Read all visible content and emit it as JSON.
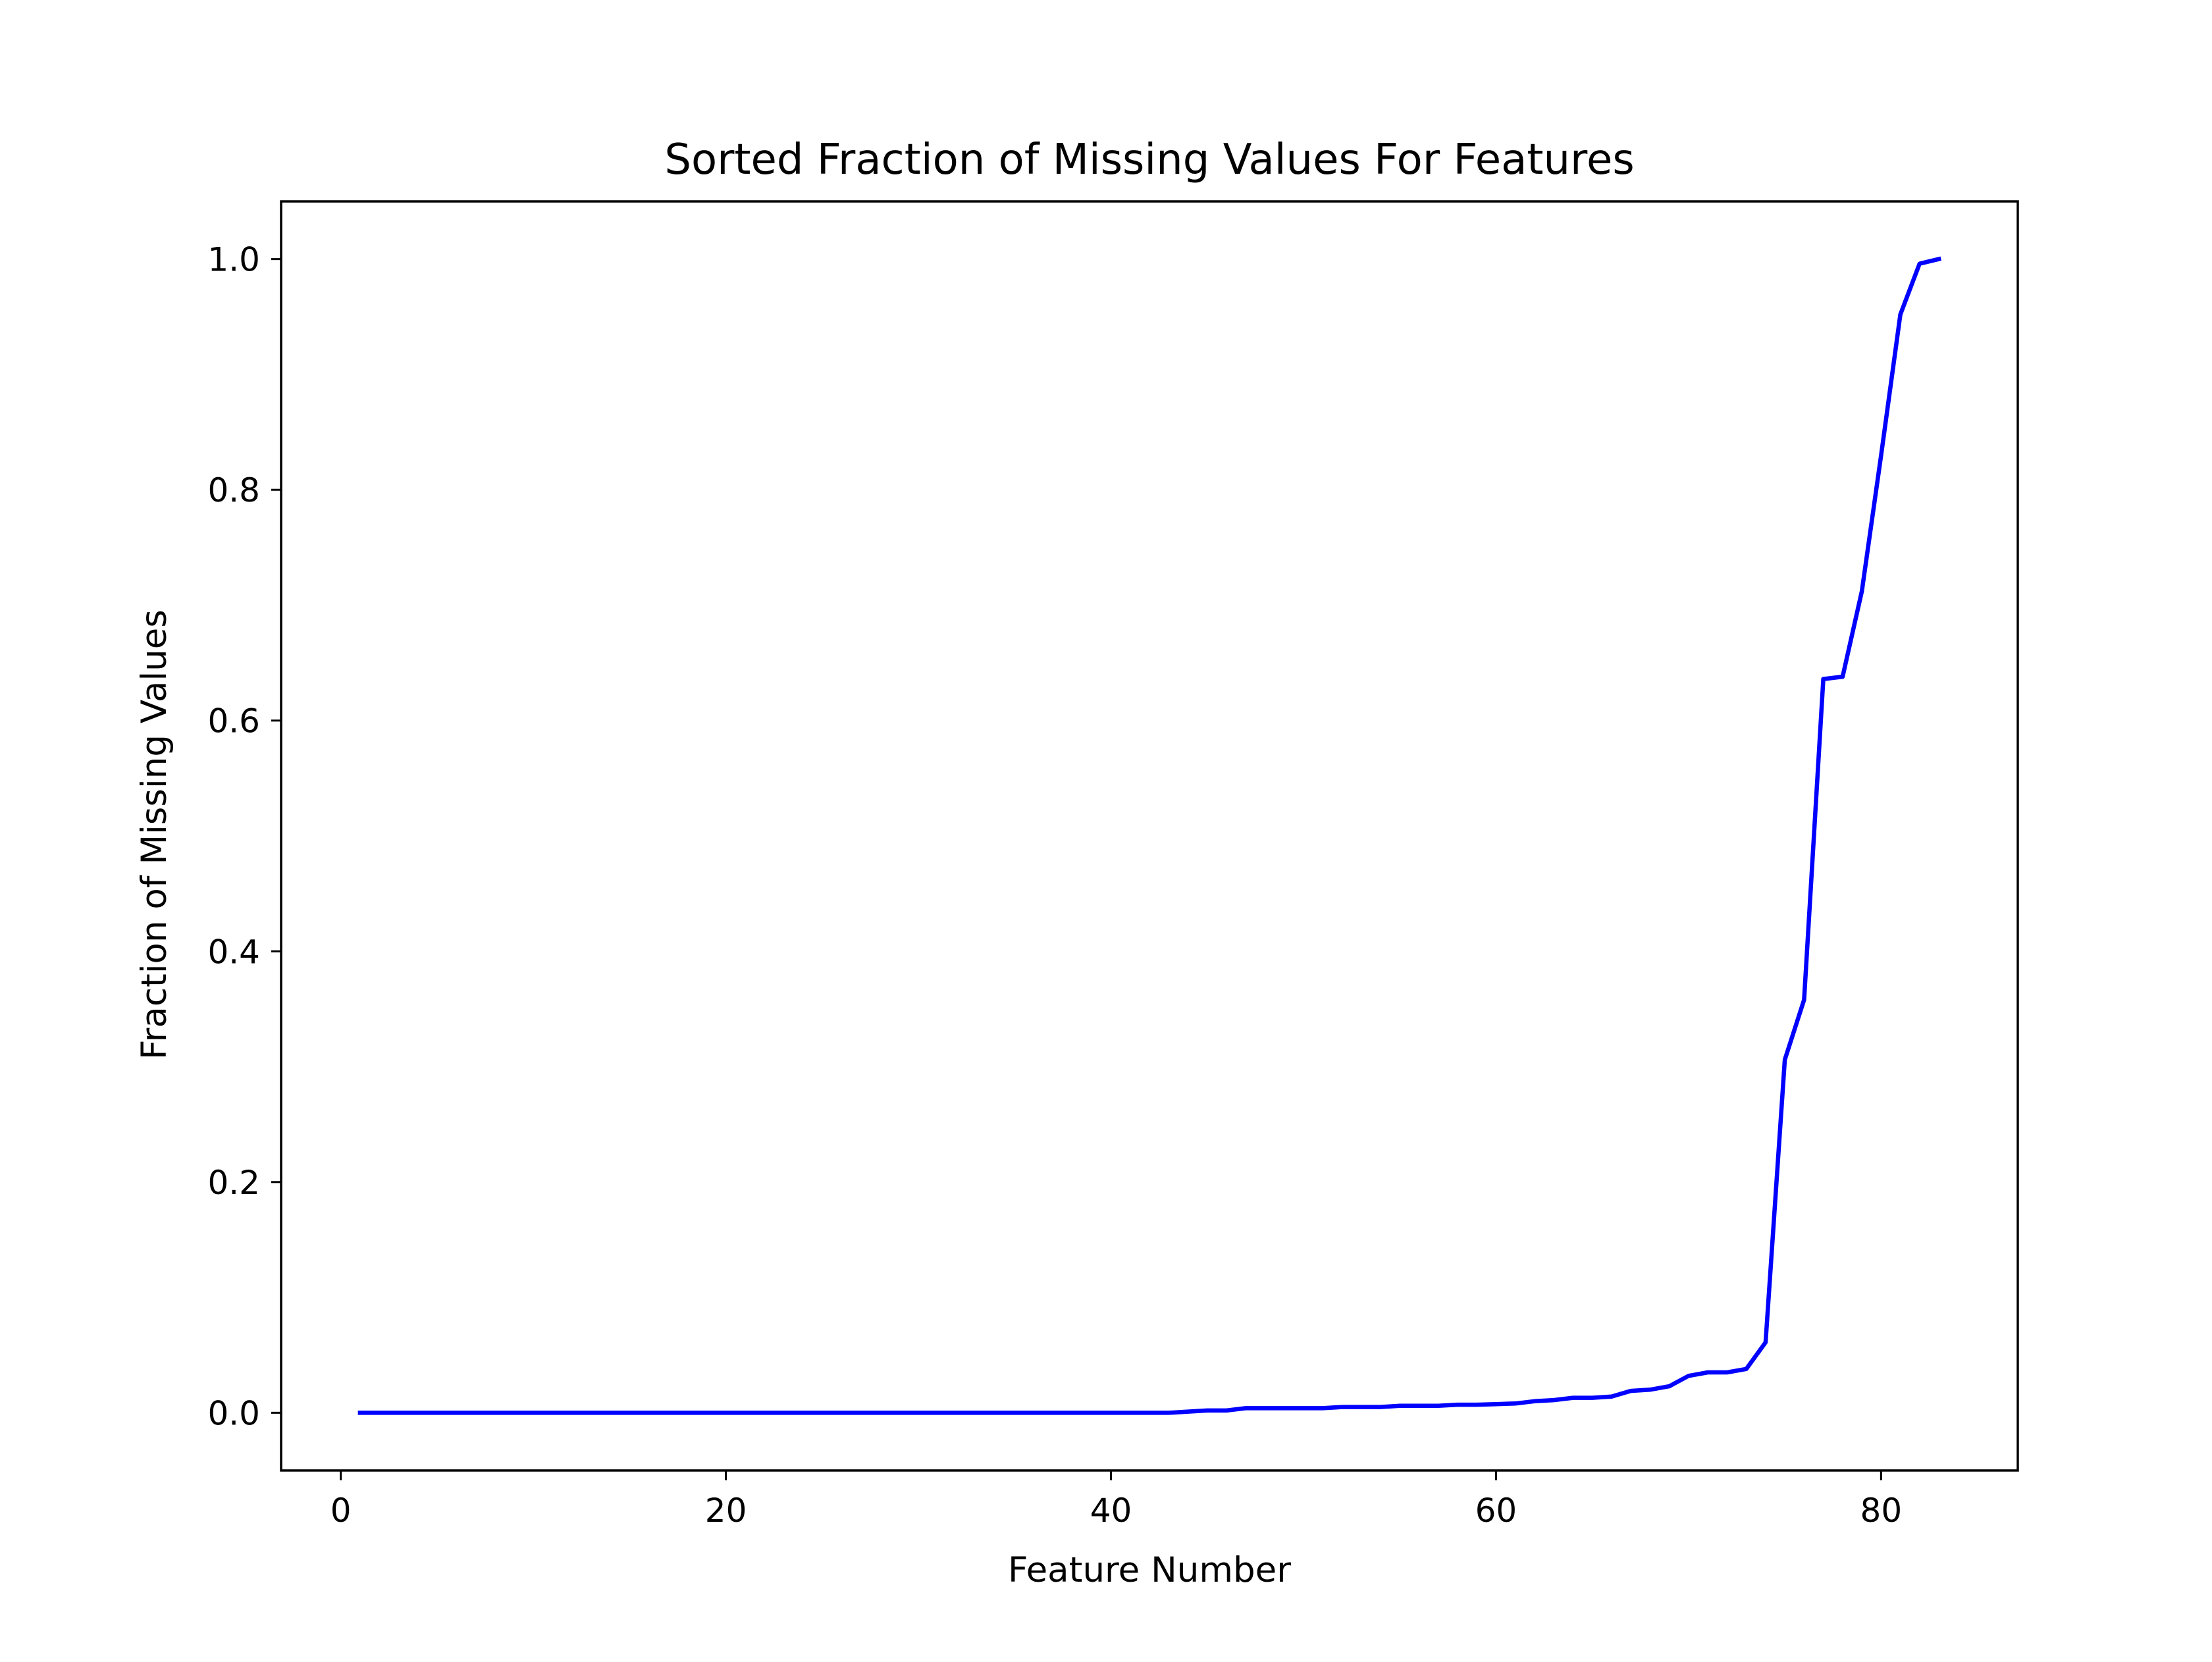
{
  "chart_data": {
    "type": "line",
    "title": "Sorted Fraction of Missing Values For Features",
    "xlabel": "Feature Number",
    "ylabel": "Fraction of Missing Values",
    "xlim": [
      -3.1,
      87.1
    ],
    "ylim": [
      -0.05,
      1.05
    ],
    "xticks": [
      0,
      20,
      40,
      60,
      80
    ],
    "yticks": [
      0.0,
      0.2,
      0.4,
      0.6,
      0.8,
      1.0
    ],
    "xtick_labels": [
      "0",
      "20",
      "40",
      "60",
      "80"
    ],
    "ytick_labels": [
      "0.0",
      "0.2",
      "0.4",
      "0.6",
      "0.8",
      "1.0"
    ],
    "grid": false,
    "series": [
      {
        "color": "#0000ff",
        "x": [
          1,
          2,
          3,
          4,
          5,
          6,
          7,
          8,
          9,
          10,
          11,
          12,
          13,
          14,
          15,
          16,
          17,
          18,
          19,
          20,
          21,
          22,
          23,
          24,
          25,
          26,
          27,
          28,
          29,
          30,
          31,
          32,
          33,
          34,
          35,
          36,
          37,
          38,
          39,
          40,
          41,
          42,
          43,
          44,
          45,
          46,
          47,
          48,
          49,
          50,
          51,
          52,
          53,
          54,
          55,
          56,
          57,
          58,
          59,
          60,
          61,
          62,
          63,
          64,
          65,
          66,
          67,
          68,
          69,
          70,
          71,
          72,
          73,
          74,
          75,
          76,
          77,
          78,
          79,
          80,
          81,
          82,
          83
        ],
        "y": [
          0,
          0,
          0,
          0,
          0,
          0,
          0,
          0,
          0,
          0,
          0,
          0,
          0,
          0,
          0,
          0,
          0,
          0,
          0,
          0,
          0,
          0,
          0,
          0,
          0,
          0,
          0,
          0,
          0,
          0,
          0,
          0,
          0,
          0,
          0,
          0,
          0,
          0,
          0,
          0,
          0,
          0,
          0,
          0.001,
          0.002,
          0.002,
          0.004,
          0.004,
          0.004,
          0.004,
          0.004,
          0.005,
          0.005,
          0.005,
          0.006,
          0.006,
          0.006,
          0.007,
          0.007,
          0.0075,
          0.008,
          0.01,
          0.011,
          0.013,
          0.013,
          0.014,
          0.019,
          0.02,
          0.023,
          0.032,
          0.035,
          0.035,
          0.038,
          0.061,
          0.306,
          0.358,
          0.636,
          0.638,
          0.712,
          0.83,
          0.952,
          0.996,
          1.0
        ]
      }
    ]
  }
}
